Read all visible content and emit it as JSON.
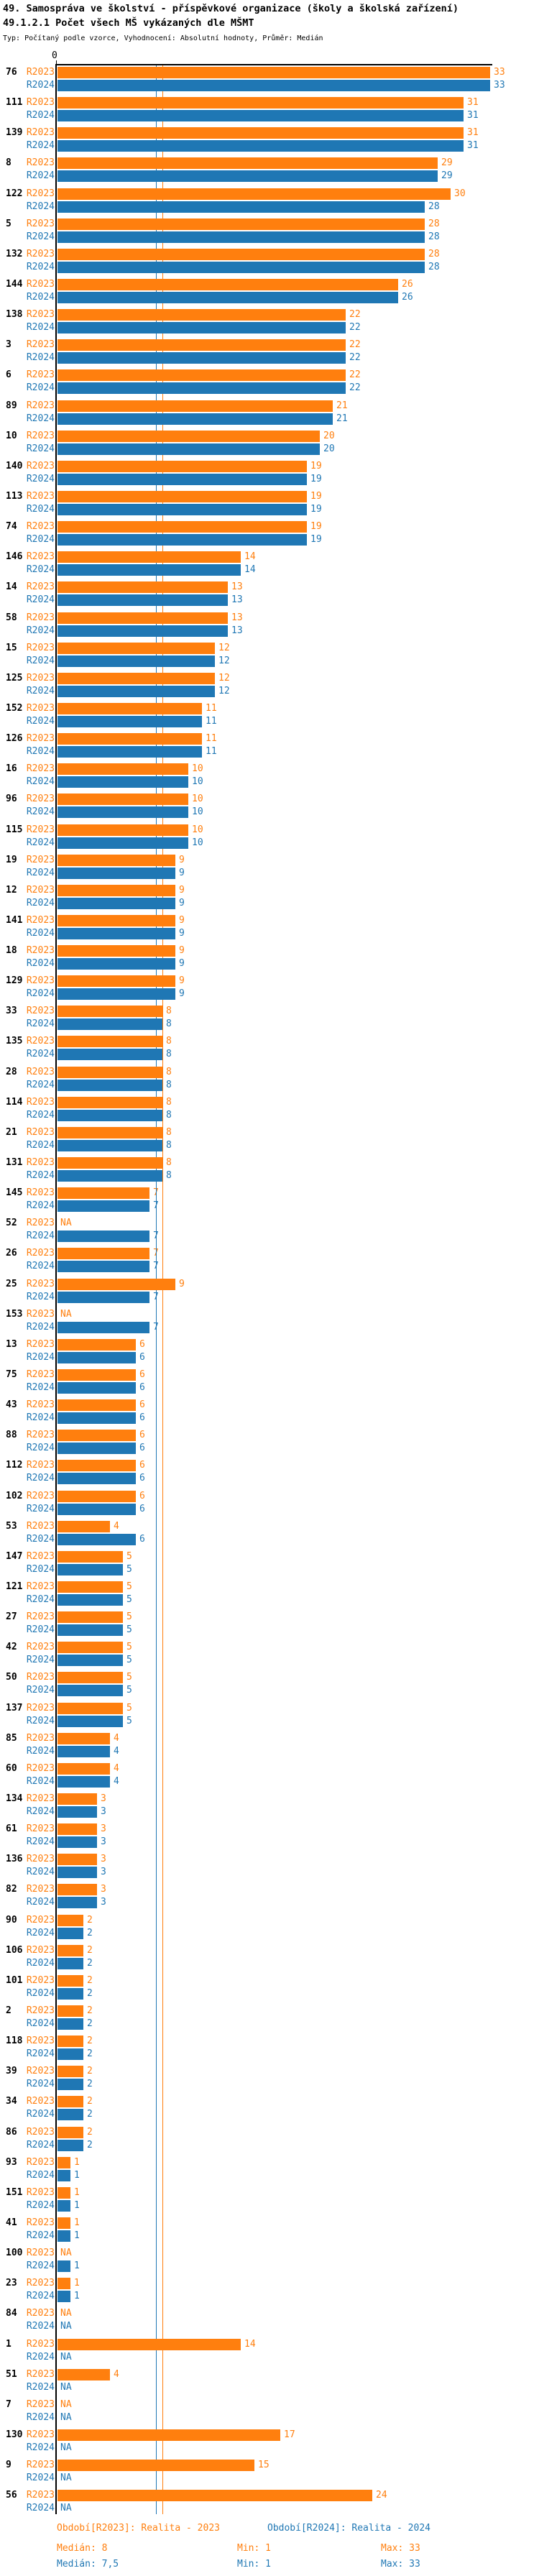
{
  "header": {
    "title": "49. Samospráva ve školství - příspěvkové organizace (školy a školská zařízení)",
    "subtitle": "49.1.2.1 Počet všech MŠ vykázaných dle MŠMT",
    "meta": "Typ: Počítaný podle vzorce, Vyhodnocení: Absolutní hodnoty, Průměr: Medián"
  },
  "axis": {
    "zero_label": "0"
  },
  "na_label": "NA",
  "colors": {
    "r2023": "#ff7f0e",
    "r2024": "#1f77b4",
    "axis": "#000000",
    "background": "#ffffff"
  },
  "legend": {
    "r2023": "Období[R2023]: Realita - 2023",
    "r2024": "Období[R2024]: Realita - 2024"
  },
  "stats": {
    "r2023": {
      "median": "Medián: 8",
      "min": "Min: 1",
      "max": "Max: 33"
    },
    "r2024": {
      "median": "Medián: 7,5",
      "min": "Min: 1",
      "max": "Max: 33"
    }
  },
  "chart_data": {
    "type": "bar",
    "orientation": "horizontal",
    "title": "49.1.2.1 Počet všech MŠ vykázaných dle MŠMT",
    "xlim": [
      0,
      33
    ],
    "grid": false,
    "legend_position": "bottom",
    "series_labels": {
      "r2023": "R2023",
      "r2024": "R2024"
    },
    "medians": {
      "r2023": 8,
      "r2024": 7.5
    },
    "mins": {
      "r2023": 1,
      "r2024": 1
    },
    "maxs": {
      "r2023": 33,
      "r2024": 33
    },
    "groups": [
      {
        "id": "76",
        "r2023": 33,
        "r2024": 33
      },
      {
        "id": "111",
        "r2023": 31,
        "r2024": 31
      },
      {
        "id": "139",
        "r2023": 31,
        "r2024": 31
      },
      {
        "id": "8",
        "r2023": 29,
        "r2024": 29
      },
      {
        "id": "122",
        "r2023": 30,
        "r2024": 28
      },
      {
        "id": "5",
        "r2023": 28,
        "r2024": 28
      },
      {
        "id": "132",
        "r2023": 28,
        "r2024": 28
      },
      {
        "id": "144",
        "r2023": 26,
        "r2024": 26
      },
      {
        "id": "138",
        "r2023": 22,
        "r2024": 22
      },
      {
        "id": "3",
        "r2023": 22,
        "r2024": 22
      },
      {
        "id": "6",
        "r2023": 22,
        "r2024": 22
      },
      {
        "id": "89",
        "r2023": 21,
        "r2024": 21
      },
      {
        "id": "10",
        "r2023": 20,
        "r2024": 20
      },
      {
        "id": "140",
        "r2023": 19,
        "r2024": 19
      },
      {
        "id": "113",
        "r2023": 19,
        "r2024": 19
      },
      {
        "id": "74",
        "r2023": 19,
        "r2024": 19
      },
      {
        "id": "146",
        "r2023": 14,
        "r2024": 14
      },
      {
        "id": "14",
        "r2023": 13,
        "r2024": 13
      },
      {
        "id": "58",
        "r2023": 13,
        "r2024": 13
      },
      {
        "id": "15",
        "r2023": 12,
        "r2024": 12
      },
      {
        "id": "125",
        "r2023": 12,
        "r2024": 12
      },
      {
        "id": "152",
        "r2023": 11,
        "r2024": 11
      },
      {
        "id": "126",
        "r2023": 11,
        "r2024": 11
      },
      {
        "id": "16",
        "r2023": 10,
        "r2024": 10
      },
      {
        "id": "96",
        "r2023": 10,
        "r2024": 10
      },
      {
        "id": "115",
        "r2023": 10,
        "r2024": 10
      },
      {
        "id": "19",
        "r2023": 9,
        "r2024": 9
      },
      {
        "id": "12",
        "r2023": 9,
        "r2024": 9
      },
      {
        "id": "141",
        "r2023": 9,
        "r2024": 9
      },
      {
        "id": "18",
        "r2023": 9,
        "r2024": 9
      },
      {
        "id": "129",
        "r2023": 9,
        "r2024": 9
      },
      {
        "id": "33",
        "r2023": 8,
        "r2024": 8
      },
      {
        "id": "135",
        "r2023": 8,
        "r2024": 8
      },
      {
        "id": "28",
        "r2023": 8,
        "r2024": 8
      },
      {
        "id": "114",
        "r2023": 8,
        "r2024": 8
      },
      {
        "id": "21",
        "r2023": 8,
        "r2024": 8
      },
      {
        "id": "131",
        "r2023": 8,
        "r2024": 8
      },
      {
        "id": "145",
        "r2023": 7,
        "r2024": 7
      },
      {
        "id": "52",
        "r2023": null,
        "r2024": 7
      },
      {
        "id": "26",
        "r2023": 7,
        "r2024": 7
      },
      {
        "id": "25",
        "r2023": 9,
        "r2024": 7
      },
      {
        "id": "153",
        "r2023": null,
        "r2024": 7
      },
      {
        "id": "13",
        "r2023": 6,
        "r2024": 6
      },
      {
        "id": "75",
        "r2023": 6,
        "r2024": 6
      },
      {
        "id": "43",
        "r2023": 6,
        "r2024": 6
      },
      {
        "id": "88",
        "r2023": 6,
        "r2024": 6
      },
      {
        "id": "112",
        "r2023": 6,
        "r2024": 6
      },
      {
        "id": "102",
        "r2023": 6,
        "r2024": 6
      },
      {
        "id": "53",
        "r2023": 4,
        "r2024": 6
      },
      {
        "id": "147",
        "r2023": 5,
        "r2024": 5
      },
      {
        "id": "121",
        "r2023": 5,
        "r2024": 5
      },
      {
        "id": "27",
        "r2023": 5,
        "r2024": 5
      },
      {
        "id": "42",
        "r2023": 5,
        "r2024": 5
      },
      {
        "id": "50",
        "r2023": 5,
        "r2024": 5
      },
      {
        "id": "137",
        "r2023": 5,
        "r2024": 5
      },
      {
        "id": "85",
        "r2023": 4,
        "r2024": 4
      },
      {
        "id": "60",
        "r2023": 4,
        "r2024": 4
      },
      {
        "id": "134",
        "r2023": 3,
        "r2024": 3
      },
      {
        "id": "61",
        "r2023": 3,
        "r2024": 3
      },
      {
        "id": "136",
        "r2023": 3,
        "r2024": 3
      },
      {
        "id": "82",
        "r2023": 3,
        "r2024": 3
      },
      {
        "id": "90",
        "r2023": 2,
        "r2024": 2
      },
      {
        "id": "106",
        "r2023": 2,
        "r2024": 2
      },
      {
        "id": "101",
        "r2023": 2,
        "r2024": 2
      },
      {
        "id": "2",
        "r2023": 2,
        "r2024": 2
      },
      {
        "id": "118",
        "r2023": 2,
        "r2024": 2
      },
      {
        "id": "39",
        "r2023": 2,
        "r2024": 2
      },
      {
        "id": "34",
        "r2023": 2,
        "r2024": 2
      },
      {
        "id": "86",
        "r2023": 2,
        "r2024": 2
      },
      {
        "id": "93",
        "r2023": 1,
        "r2024": 1
      },
      {
        "id": "151",
        "r2023": 1,
        "r2024": 1
      },
      {
        "id": "41",
        "r2023": 1,
        "r2024": 1
      },
      {
        "id": "100",
        "r2023": null,
        "r2024": 1
      },
      {
        "id": "23",
        "r2023": 1,
        "r2024": 1
      },
      {
        "id": "84",
        "r2023": null,
        "r2024": null
      },
      {
        "id": "1",
        "r2023": 14,
        "r2024": null
      },
      {
        "id": "51",
        "r2023": 4,
        "r2024": null
      },
      {
        "id": "7",
        "r2023": null,
        "r2024": null
      },
      {
        "id": "130",
        "r2023": 17,
        "r2024": null
      },
      {
        "id": "9",
        "r2023": 15,
        "r2024": null
      },
      {
        "id": "56",
        "r2023": 24,
        "r2024": null
      }
    ]
  }
}
